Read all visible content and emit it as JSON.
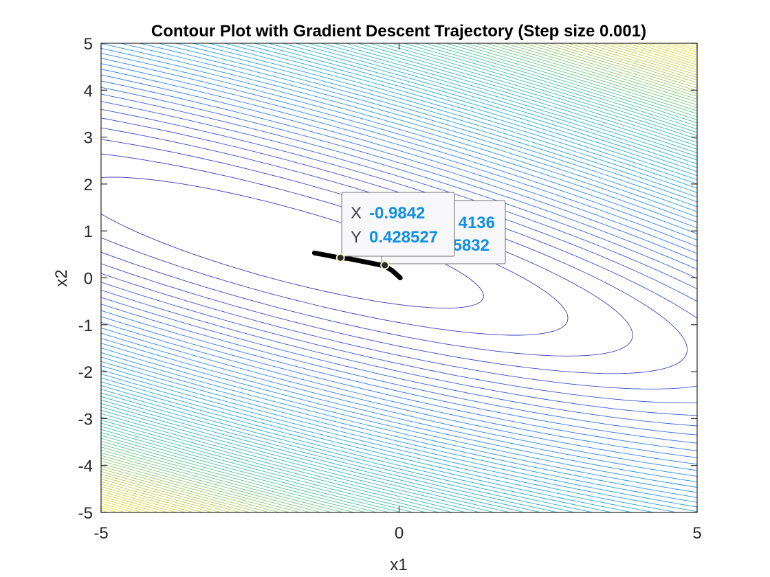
{
  "chart_data": {
    "type": "contour",
    "title": "Contour Plot with Gradient Descent Trajectory (Step size 0.001)",
    "xlabel": "x1",
    "ylabel": "x2",
    "xlim": [
      -5,
      5
    ],
    "ylim": [
      -5,
      5
    ],
    "xticks": [
      "-5",
      "0",
      "5"
    ],
    "yticks": [
      "-5",
      "-4",
      "-3",
      "-2",
      "-1",
      "0",
      "1",
      "2",
      "3",
      "4",
      "5"
    ],
    "grid": false,
    "legend": "none",
    "colormap": "parula",
    "colormap_stops": [
      "#3e26a8",
      "#2d7af2",
      "#1baccf",
      "#46c29a",
      "#b5c94f",
      "#f7e020"
    ],
    "contour_function": {
      "form": "a*x1^2 + b*x1*x2 + c*x2^2 + d*x1 + e*x2",
      "a": 1,
      "b": 4,
      "c": 6,
      "d": 1,
      "e": -1
    },
    "trajectory": {
      "color": "#000000",
      "points": [
        [
          0.02,
          0.0
        ],
        [
          -0.05,
          0.08
        ],
        [
          -0.12,
          0.16
        ],
        [
          -0.2,
          0.22
        ],
        [
          -0.3,
          0.27
        ],
        [
          -0.45,
          0.31
        ],
        [
          -0.65,
          0.36
        ],
        [
          -0.85,
          0.41
        ],
        [
          -1.05,
          0.44
        ],
        [
          -1.25,
          0.49
        ],
        [
          -1.42,
          0.53
        ]
      ]
    },
    "datatips": [
      {
        "label_x": "X",
        "value_x": "-0.9842",
        "label_y": "Y",
        "value_y": "0.428527",
        "point": [
          -0.9842,
          0.428527
        ]
      },
      {
        "label_x": "X",
        "value_x": "4136",
        "label_y": "Y",
        "value_y": "5832",
        "point": [
          -0.24,
          0.27
        ]
      }
    ]
  }
}
